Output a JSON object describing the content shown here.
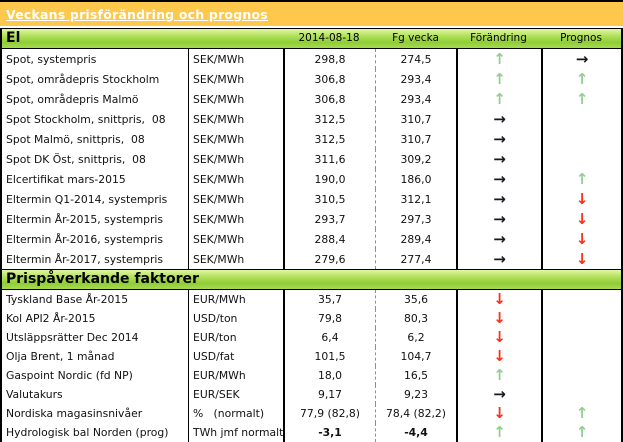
{
  "header": {
    "title": "Veckans prisförändring och prognos"
  },
  "colors": {
    "title_bar": "#fdc84b",
    "section_bar_green": "#9ad043",
    "arrow_green": "#8fd08f",
    "arrow_red": "#ff2d16",
    "arrow_black": "#17171f"
  },
  "arrows": {
    "up-green": {
      "glyph": "↑",
      "color": "#8fd08f",
      "dir": "up"
    },
    "down-red": {
      "glyph": "↓",
      "color": "#ff2d16",
      "dir": "down"
    },
    "right-black": {
      "glyph": "→",
      "color": "#17171f",
      "dir": "right"
    }
  },
  "sections": [
    {
      "title": "El",
      "columns": [
        "2014-08-18",
        "Fg vecka",
        "Förändring",
        "Prognos"
      ],
      "rows": [
        {
          "label": "Spot, systempris",
          "unit": "SEK/MWh",
          "current": "298,8",
          "previous": "274,5",
          "change": "up-green",
          "prognosis": "right-black"
        },
        {
          "label": "Spot, områdepris Stockholm",
          "unit": "SEK/MWh",
          "current": "306,8",
          "previous": "293,4",
          "change": "up-green",
          "prognosis": "up-green"
        },
        {
          "label": "Spot, områdepris Malmö",
          "unit": "SEK/MWh",
          "current": "306,8",
          "previous": "293,4",
          "change": "up-green",
          "prognosis": "up-green"
        },
        {
          "label": "Spot Stockholm, snittpris,  08",
          "unit": "SEK/MWh",
          "current": "312,5",
          "previous": "310,7",
          "change": "right-black",
          "prognosis": ""
        },
        {
          "label": "Spot Malmö, snittpris,  08",
          "unit": "SEK/MWh",
          "current": "312,5",
          "previous": "310,7",
          "change": "right-black",
          "prognosis": ""
        },
        {
          "label": "Spot DK Öst, snittpris,  08",
          "unit": "SEK/MWh",
          "current": "311,6",
          "previous": "309,2",
          "change": "right-black",
          "prognosis": ""
        },
        {
          "label": "Elcertifikat mars-2015",
          "unit": "SEK/MWh",
          "current": "190,0",
          "previous": "186,0",
          "change": "right-black",
          "prognosis": "up-green"
        },
        {
          "label": "Eltermin Q1-2014, systempris",
          "unit": "SEK/MWh",
          "current": "310,5",
          "previous": "312,1",
          "change": "right-black",
          "prognosis": "down-red"
        },
        {
          "label": "Eltermin År-2015, systempris",
          "unit": "SEK/MWh",
          "current": "293,7",
          "previous": "297,3",
          "change": "right-black",
          "prognosis": "down-red"
        },
        {
          "label": "Eltermin År-2016, systempris",
          "unit": "SEK/MWh",
          "current": "288,4",
          "previous": "289,4",
          "change": "right-black",
          "prognosis": "down-red"
        },
        {
          "label": "Eltermin År-2017, systempris",
          "unit": "SEK/MWh",
          "current": "279,6",
          "previous": "277,4",
          "change": "right-black",
          "prognosis": "down-red"
        }
      ]
    },
    {
      "title": "Prispåverkande faktorer",
      "columns": [],
      "rows": [
        {
          "label": "Tyskland Base År-2015",
          "unit": "EUR/MWh",
          "current": "35,7",
          "previous": "35,6",
          "change": "down-red",
          "prognosis": ""
        },
        {
          "label": "Kol API2 År-2015",
          "unit": "USD/ton",
          "current": "79,8",
          "previous": "80,3",
          "change": "down-red",
          "prognosis": ""
        },
        {
          "label": "Utsläppsrätter Dec 2014",
          "unit": "EUR/ton",
          "current": "6,4",
          "previous": "6,2",
          "change": "down-red",
          "prognosis": ""
        },
        {
          "label": "Olja Brent, 1 månad",
          "unit": "USD/fat",
          "current": "101,5",
          "previous": "104,7",
          "change": "down-red",
          "prognosis": ""
        },
        {
          "label": "Gaspoint Nordic (fd NP)",
          "unit": "EUR/MWh",
          "current": "18,0",
          "previous": "16,5",
          "change": "up-green",
          "prognosis": ""
        },
        {
          "label": "Valutakurs",
          "unit": "EUR/SEK",
          "current": "9,17",
          "previous": "9,23",
          "change": "right-black",
          "prognosis": ""
        },
        {
          "label": "Nordiska magasinsnivåer",
          "unit": "%   (normalt)",
          "current": "77,9 (82,8)",
          "previous": "78,4 (82,2)",
          "change": "down-red",
          "prognosis": "up-green"
        },
        {
          "label": "Hydrologisk bal Norden (prog)",
          "unit": "TWh jmf normalt",
          "current": "-3,1",
          "previous": "-4,4",
          "change": "up-green",
          "prognosis": "up-green",
          "bold": true
        }
      ]
    }
  ]
}
